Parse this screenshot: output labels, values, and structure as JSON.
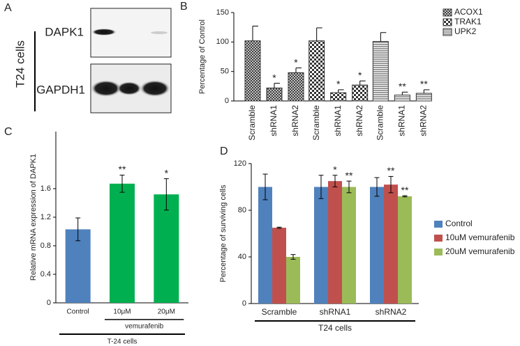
{
  "panel_a": {
    "panel": "A",
    "side_label": "T24 cells",
    "bands": [
      "DAPK1",
      "GAPDH1"
    ]
  },
  "chart_data": [
    {
      "type": "bar",
      "panel": "B",
      "ylabel": "Percentage of Control",
      "categories": [
        "Scramble",
        "shRNA1",
        "shRNA2"
      ],
      "ylim": [
        0,
        150
      ],
      "yticks": [
        0,
        50,
        100,
        150
      ],
      "series": [
        {
          "name": "ACOX1",
          "color": "#333333",
          "pattern": "crosshatch",
          "values": [
            102,
            22,
            48
          ],
          "errors": [
            25,
            8,
            8
          ],
          "annotations": [
            null,
            "*",
            "*"
          ]
        },
        {
          "name": "TRAK1",
          "color": "#333333",
          "pattern": "checker",
          "values": [
            102,
            14,
            27
          ],
          "errors": [
            22,
            5,
            7
          ],
          "annotations": [
            null,
            "*",
            "*"
          ]
        },
        {
          "name": "UPK2",
          "color": "#333333",
          "pattern": "horizontal",
          "values": [
            101,
            10,
            13
          ],
          "errors": [
            15,
            5,
            6
          ],
          "annotations": [
            null,
            "**",
            "**"
          ]
        }
      ]
    },
    {
      "type": "bar",
      "panel": "C",
      "ylabel": "Relative mRNA expression of DAPK1",
      "categories": [
        "Control",
        "10μM",
        "20μM"
      ],
      "values": [
        1.03,
        1.67,
        1.52
      ],
      "errors": [
        0.16,
        0.12,
        0.22
      ],
      "colors": [
        "#4f81bd",
        "#00b050",
        "#00b050"
      ],
      "annotations": [
        null,
        "**",
        "*"
      ],
      "group_label": "vemurafenib",
      "xlabel": "T-24 cells",
      "ylim": [
        0,
        2.4
      ],
      "yticks": [
        0,
        0.4,
        0.8,
        1.2,
        1.6
      ]
    },
    {
      "type": "bar",
      "panel": "D",
      "ylabel": "Percentage of surviving cells",
      "xlabel": "T24 cells",
      "categories": [
        "Scramble",
        "shRNA1",
        "shRNA2"
      ],
      "ylim": [
        0,
        120
      ],
      "yticks": [
        0,
        40,
        80,
        120
      ],
      "series": [
        {
          "name": "Control",
          "color": "#4f81bd",
          "values": [
            100,
            100,
            100
          ],
          "errors": [
            11,
            10,
            8
          ],
          "annotations": [
            null,
            null,
            null
          ]
        },
        {
          "name": "10uM vemurafenib",
          "color": "#c0504d",
          "values": [
            65,
            105,
            102
          ],
          "errors": [
            0.5,
            5,
            7
          ],
          "annotations": [
            null,
            "*",
            "**"
          ]
        },
        {
          "name": "20uM vemurafenib",
          "color": "#9bbb59",
          "values": [
            40,
            100,
            92
          ],
          "errors": [
            2,
            5,
            0.5
          ],
          "annotations": [
            null,
            "**",
            "**"
          ]
        }
      ]
    }
  ]
}
